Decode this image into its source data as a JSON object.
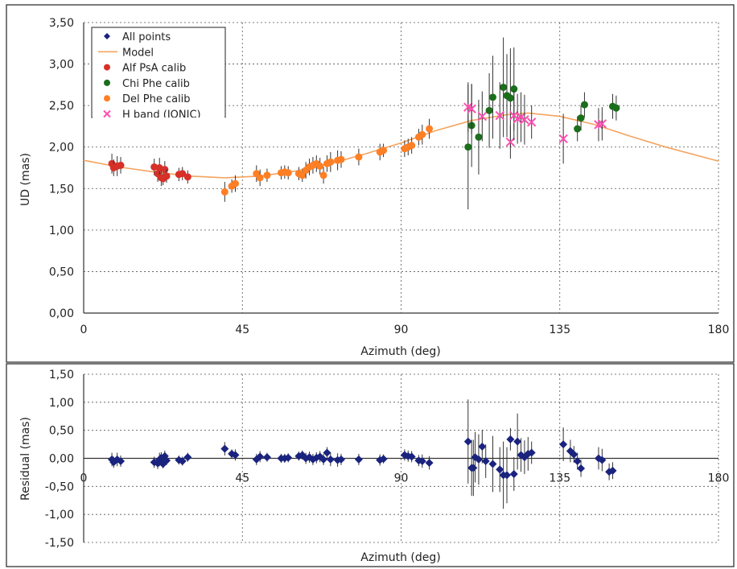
{
  "chart_data": [
    {
      "type": "scatter",
      "xlabel": "Azimuth (deg)",
      "ylabel": "UD (mas)",
      "xlim": [
        0,
        180
      ],
      "ylim": [
        0,
        3.5
      ],
      "x_ticks": [
        "0",
        "45",
        "90",
        "135",
        "180"
      ],
      "y_ticks": [
        "0,00",
        "0,50",
        "1,00",
        "1,50",
        "2,00",
        "2,50",
        "3,00",
        "3,50"
      ],
      "grid": "dashed vertical and horizontal at ticks",
      "legend": {
        "position": "top-left",
        "entries": [
          {
            "label": "All points",
            "marker": "diamond",
            "color": "#1a237e"
          },
          {
            "label": "Model",
            "marker": "line",
            "color": "#f4a460"
          },
          {
            "label": "Alf PsA calib",
            "marker": "circle",
            "color": "#d73027"
          },
          {
            "label": "Chi Phe calib",
            "marker": "circle",
            "color": "#1b6e1b"
          },
          {
            "label": "Del Phe calib",
            "marker": "circle",
            "color": "#ff7f24"
          },
          {
            "label": "H band (IONIC)",
            "marker": "x",
            "color": "#ff4fb0"
          }
        ]
      },
      "series": [
        {
          "name": "Model",
          "kind": "line",
          "color": "#f4a460",
          "points": [
            [
              0,
              1.84
            ],
            [
              10,
              1.76
            ],
            [
              20,
              1.7
            ],
            [
              30,
              1.65
            ],
            [
              40,
              1.63
            ],
            [
              50,
              1.65
            ],
            [
              60,
              1.71
            ],
            [
              70,
              1.8
            ],
            [
              80,
              1.92
            ],
            [
              90,
              2.05
            ],
            [
              100,
              2.2
            ],
            [
              110,
              2.32
            ],
            [
              120,
              2.39
            ],
            [
              126,
              2.41
            ],
            [
              135,
              2.37
            ],
            [
              145,
              2.27
            ],
            [
              155,
              2.13
            ],
            [
              165,
              2.0
            ],
            [
              180,
              1.83
            ]
          ]
        },
        {
          "name": "Alf PsA calib",
          "kind": "points",
          "color": "#d73027",
          "points": [
            [
              8,
              1.8,
              0.12
            ],
            [
              8.5,
              1.75,
              0.1
            ],
            [
              9.5,
              1.77,
              0.12
            ],
            [
              10.5,
              1.78,
              0.1
            ],
            [
              20,
              1.76,
              0.1
            ],
            [
              21,
              1.68,
              0.1
            ],
            [
              21.5,
              1.75,
              0.12
            ],
            [
              22,
              1.63,
              0.1
            ],
            [
              22.5,
              1.62,
              0.08
            ],
            [
              23,
              1.73,
              0.1
            ],
            [
              23.5,
              1.65,
              0.08
            ],
            [
              27,
              1.67,
              0.08
            ],
            [
              28,
              1.68,
              0.08
            ],
            [
              29.5,
              1.64,
              0.08
            ]
          ]
        },
        {
          "name": "Del Phe calib",
          "kind": "points",
          "color": "#ff7f24",
          "points": [
            [
              40,
              1.46,
              0.12
            ],
            [
              42,
              1.53,
              0.08
            ],
            [
              43,
              1.56,
              0.1
            ],
            [
              49,
              1.68,
              0.1
            ],
            [
              50,
              1.63,
              0.1
            ],
            [
              52,
              1.66,
              0.08
            ],
            [
              56,
              1.69,
              0.08
            ],
            [
              57,
              1.7,
              0.08
            ],
            [
              58,
              1.69,
              0.08
            ],
            [
              61,
              1.68,
              0.08
            ],
            [
              62,
              1.66,
              0.08
            ],
            [
              63,
              1.72,
              0.1
            ],
            [
              64,
              1.76,
              0.1
            ],
            [
              65,
              1.78,
              0.1
            ],
            [
              66,
              1.8,
              0.1
            ],
            [
              67,
              1.77,
              0.1
            ],
            [
              68,
              1.66,
              0.1
            ],
            [
              69,
              1.8,
              0.1
            ],
            [
              70,
              1.82,
              0.12
            ],
            [
              72,
              1.84,
              0.12
            ],
            [
              73,
              1.85,
              0.1
            ],
            [
              78,
              1.88,
              0.1
            ],
            [
              84,
              1.94,
              0.1
            ],
            [
              85,
              1.96,
              0.08
            ],
            [
              91,
              1.98,
              0.1
            ],
            [
              92,
              2.0,
              0.1
            ],
            [
              93,
              2.02,
              0.1
            ],
            [
              95,
              2.12,
              0.1
            ],
            [
              96,
              2.15,
              0.12
            ],
            [
              98,
              2.22,
              0.12
            ]
          ]
        },
        {
          "name": "Chi Phe calib",
          "kind": "points",
          "color": "#1b6e1b",
          "points": [
            [
              109,
              2.0,
              0.75
            ],
            [
              110,
              2.26,
              0.5
            ],
            [
              112,
              2.12,
              0.45
            ],
            [
              115,
              2.44,
              0.45
            ],
            [
              116,
              2.6,
              0.5
            ],
            [
              119,
              2.72,
              0.6
            ],
            [
              120,
              2.62,
              0.5
            ],
            [
              121,
              2.59,
              0.6
            ],
            [
              122,
              2.7,
              0.5
            ],
            [
              140,
              2.22,
              0.15
            ],
            [
              141,
              2.35,
              0.15
            ],
            [
              142,
              2.51,
              0.15
            ],
            [
              150,
              2.49,
              0.15
            ],
            [
              151,
              2.47,
              0.15
            ]
          ]
        },
        {
          "name": "H band (IONIC)",
          "kind": "points",
          "color": "#ff4fb0",
          "points": [
            [
              109,
              2.48,
              0.3
            ],
            [
              110,
              2.46,
              0.3
            ],
            [
              113,
              2.37,
              0.3
            ],
            [
              118,
              2.38,
              0.4
            ],
            [
              121,
              2.06,
              0.2
            ],
            [
              122,
              2.38,
              0.3
            ],
            [
              123,
              2.34,
              0.3
            ],
            [
              124,
              2.36,
              0.3
            ],
            [
              125,
              2.33,
              0.3
            ],
            [
              127,
              2.3,
              0.2
            ],
            [
              136,
              2.1,
              0.3
            ],
            [
              146,
              2.27,
              0.2
            ],
            [
              147,
              2.28,
              0.2
            ]
          ]
        }
      ]
    },
    {
      "type": "scatter",
      "xlabel": "Azimuth (deg)",
      "ylabel": "Residual (mas)",
      "xlim": [
        0,
        180
      ],
      "ylim": [
        -1.5,
        1.5
      ],
      "x_ticks": [
        "0",
        "45",
        "90",
        "135",
        "180"
      ],
      "y_ticks": [
        "-1,50",
        "-1,00",
        "-0,50",
        "0,00",
        "0,50",
        "1,00",
        "1,50"
      ],
      "grid": "dashed vertical and horizontal at ticks",
      "series": [
        {
          "name": "All points",
          "kind": "points",
          "color": "#1a237e",
          "points": [
            [
              8,
              -0.02,
              0.12
            ],
            [
              8.5,
              -0.07,
              0.1
            ],
            [
              9.5,
              -0.02,
              0.12
            ],
            [
              10.5,
              -0.05,
              0.1
            ],
            [
              20,
              -0.07,
              0.1
            ],
            [
              21,
              -0.09,
              0.1
            ],
            [
              21.5,
              -0.02,
              0.12
            ],
            [
              22,
              0.01,
              0.1
            ],
            [
              22.5,
              -0.1,
              0.08
            ],
            [
              23,
              0.04,
              0.1
            ],
            [
              23.5,
              -0.04,
              0.08
            ],
            [
              27,
              -0.03,
              0.08
            ],
            [
              28,
              -0.05,
              0.08
            ],
            [
              29.5,
              0.02,
              0.08
            ],
            [
              40,
              0.17,
              0.12
            ],
            [
              42,
              0.08,
              0.08
            ],
            [
              43,
              0.06,
              0.1
            ],
            [
              49,
              -0.02,
              0.1
            ],
            [
              50,
              0.03,
              0.1
            ],
            [
              52,
              0.02,
              0.08
            ],
            [
              56,
              0.0,
              0.08
            ],
            [
              57,
              0.0,
              0.08
            ],
            [
              58,
              0.01,
              0.08
            ],
            [
              61,
              0.04,
              0.08
            ],
            [
              62,
              0.06,
              0.08
            ],
            [
              63,
              0.0,
              0.1
            ],
            [
              64,
              0.02,
              0.1
            ],
            [
              65,
              -0.02,
              0.1
            ],
            [
              66,
              0.01,
              0.1
            ],
            [
              67,
              0.03,
              0.1
            ],
            [
              68,
              -0.02,
              0.1
            ],
            [
              69,
              0.1,
              0.1
            ],
            [
              70,
              -0.02,
              0.12
            ],
            [
              72,
              -0.03,
              0.12
            ],
            [
              73,
              -0.02,
              0.1
            ],
            [
              78,
              -0.02,
              0.1
            ],
            [
              84,
              -0.03,
              0.1
            ],
            [
              85,
              -0.01,
              0.08
            ],
            [
              91,
              0.06,
              0.1
            ],
            [
              92,
              0.04,
              0.1
            ],
            [
              93,
              0.03,
              0.1
            ],
            [
              95,
              -0.04,
              0.1
            ],
            [
              96,
              -0.05,
              0.12
            ],
            [
              98,
              -0.08,
              0.12
            ],
            [
              109,
              0.3,
              0.75
            ],
            [
              110,
              -0.17,
              0.5
            ],
            [
              110.5,
              -0.17,
              0.5
            ],
            [
              111,
              0.02,
              0.45
            ],
            [
              112,
              -0.02,
              0.45
            ],
            [
              113,
              0.21,
              0.3
            ],
            [
              114,
              -0.05,
              0.3
            ],
            [
              116,
              -0.1,
              0.5
            ],
            [
              118,
              -0.2,
              0.4
            ],
            [
              119,
              -0.3,
              0.6
            ],
            [
              120,
              -0.3,
              0.5
            ],
            [
              121,
              0.34,
              0.2
            ],
            [
              122,
              -0.28,
              0.3
            ],
            [
              123,
              0.3,
              0.5
            ],
            [
              124,
              0.06,
              0.3
            ],
            [
              125,
              0.02,
              0.3
            ],
            [
              126,
              0.08,
              0.3
            ],
            [
              127,
              0.1,
              0.2
            ],
            [
              136,
              0.25,
              0.3
            ],
            [
              138,
              0.13,
              0.2
            ],
            [
              139,
              0.07,
              0.15
            ],
            [
              140,
              -0.05,
              0.15
            ],
            [
              141,
              -0.18,
              0.15
            ],
            [
              146,
              0.0,
              0.2
            ],
            [
              147,
              -0.03,
              0.2
            ],
            [
              149,
              -0.24,
              0.15
            ],
            [
              150,
              -0.22,
              0.15
            ]
          ]
        }
      ]
    }
  ]
}
